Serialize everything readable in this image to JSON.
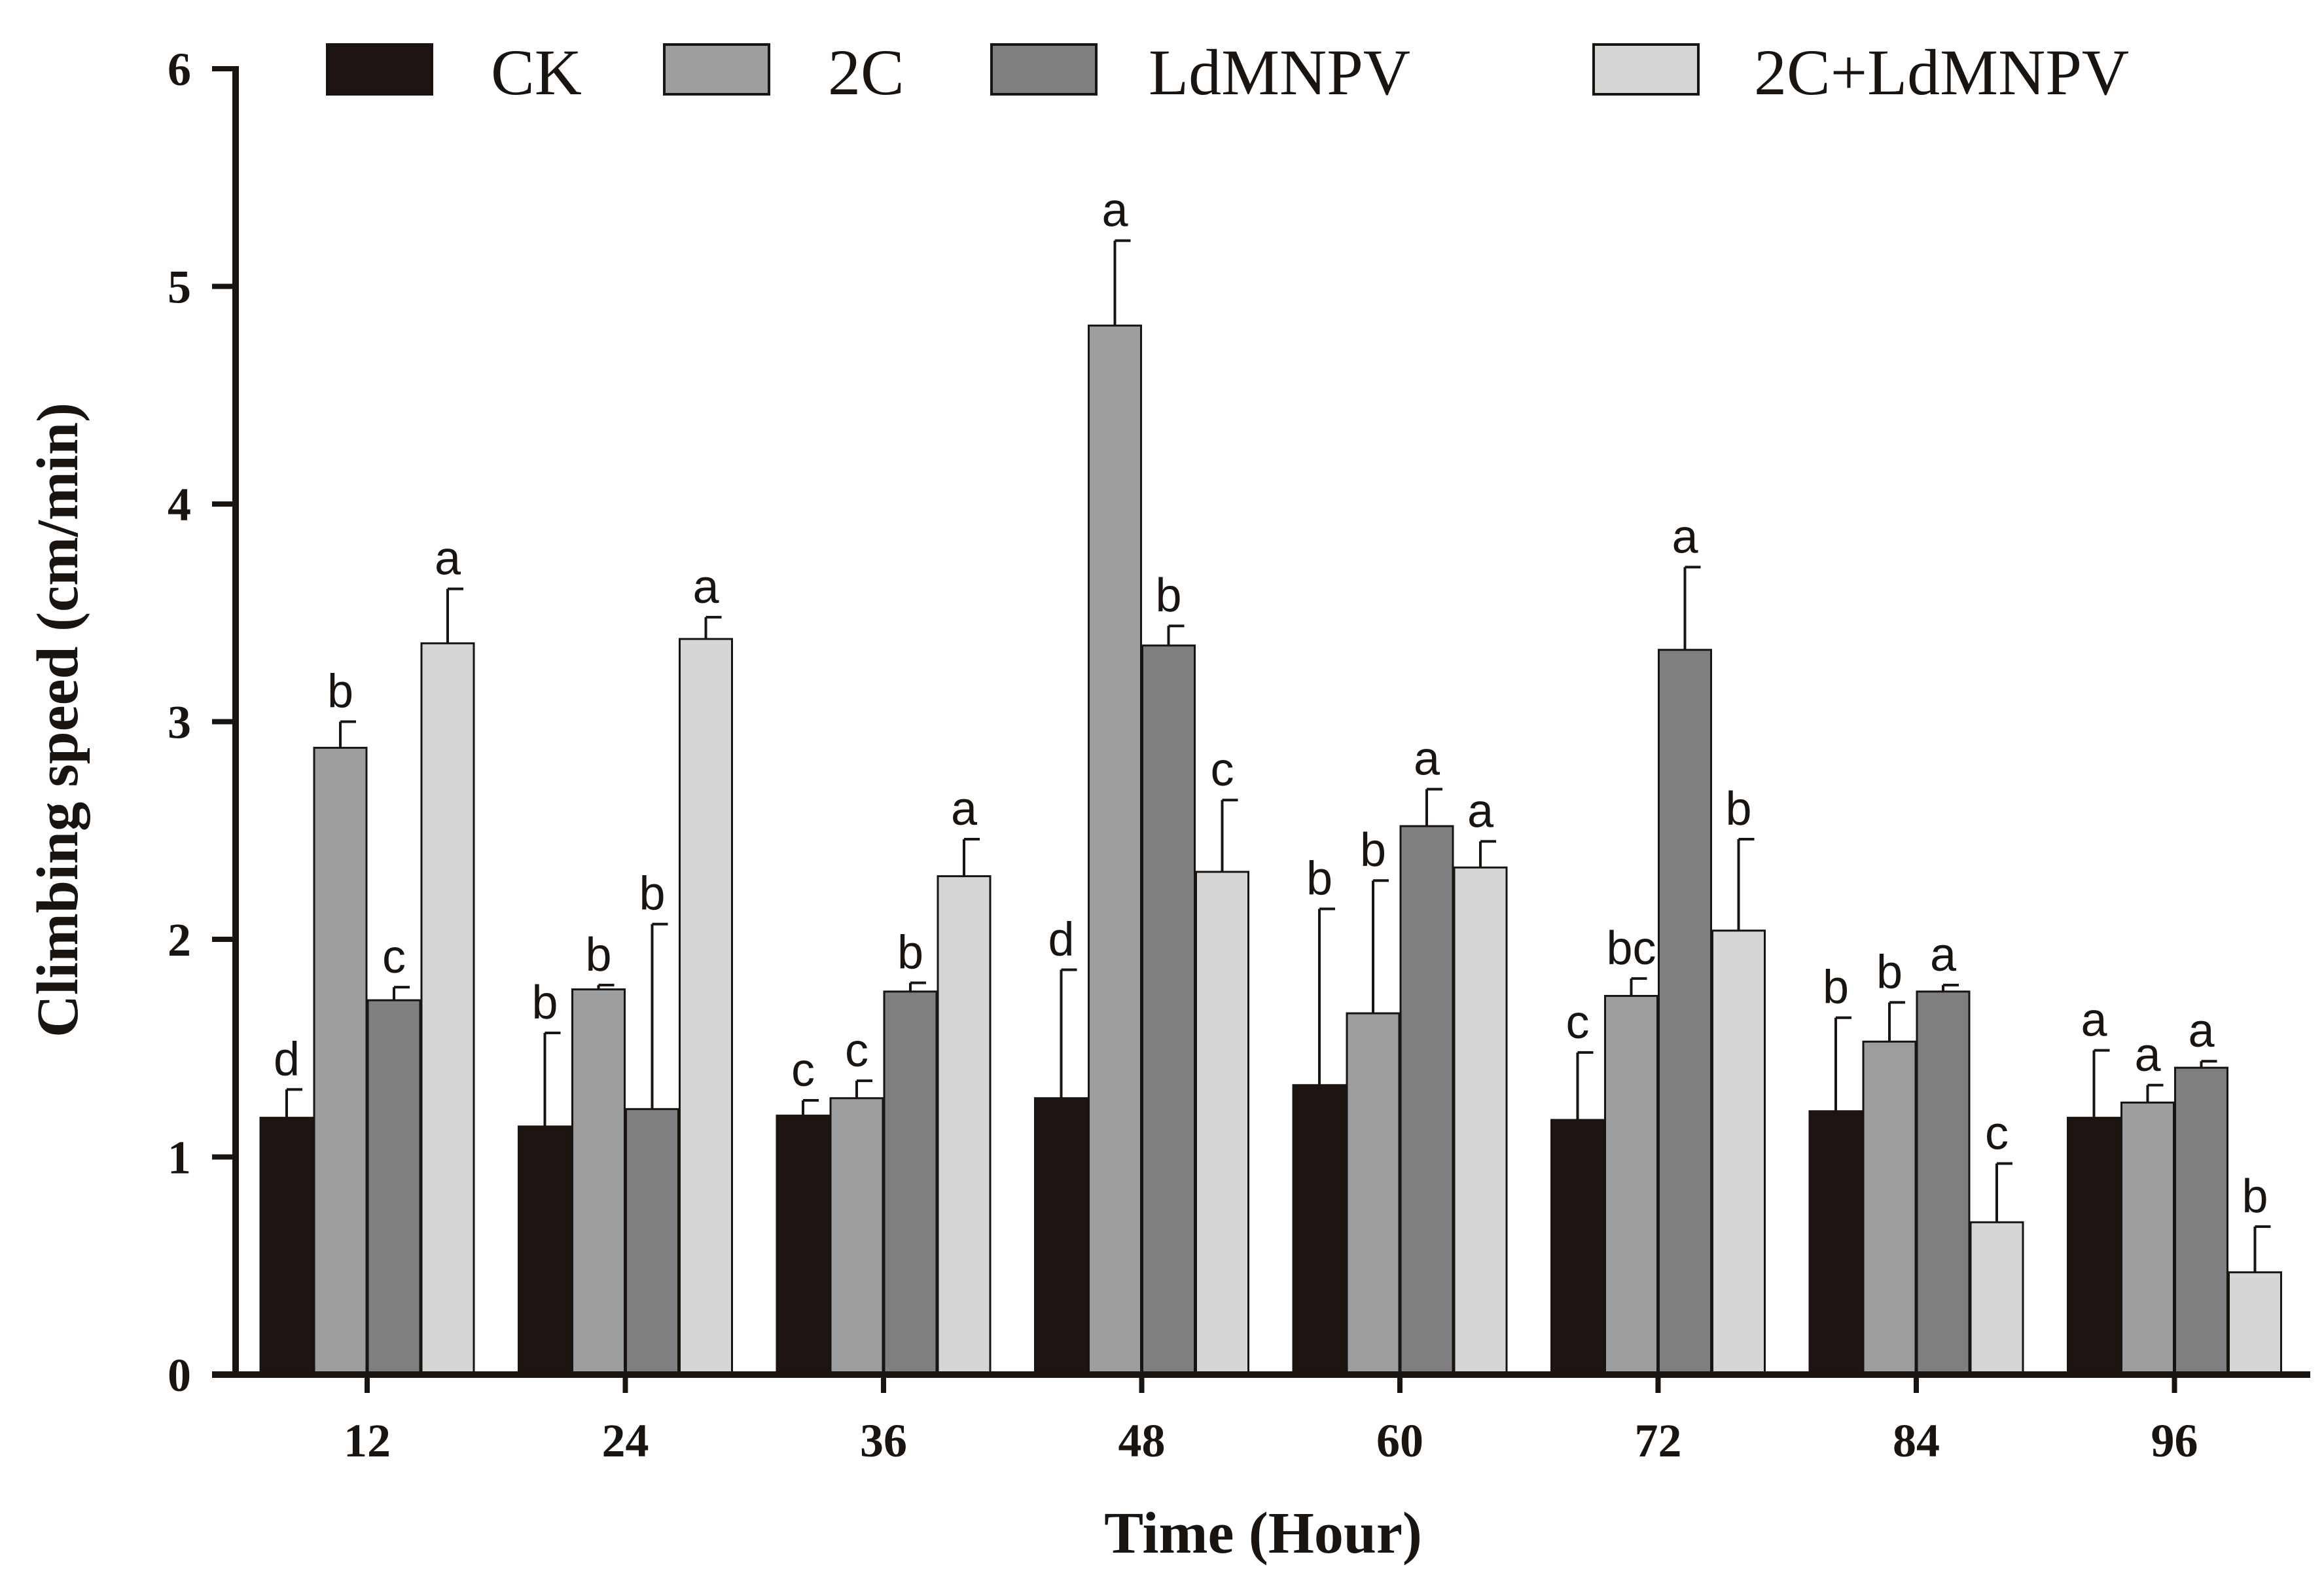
{
  "chart_data": {
    "type": "bar",
    "xlabel": "Time (Hour)",
    "ylabel": "Climbing speed (cm/min)",
    "ylim": [
      0,
      6
    ],
    "yticks": [
      "0",
      "1",
      "2",
      "3",
      "4",
      "5",
      "6"
    ],
    "categories": [
      "12",
      "24",
      "36",
      "48",
      "60",
      "72",
      "84",
      "96"
    ],
    "grid": false,
    "legend_position": "top",
    "series": [
      {
        "name": "CK",
        "color": "#1e1411",
        "values": [
          1.18,
          1.14,
          1.19,
          1.27,
          1.33,
          1.17,
          1.21,
          1.18
        ],
        "errors": [
          0.13,
          0.43,
          0.07,
          0.59,
          0.81,
          0.31,
          0.43,
          0.31
        ],
        "labels": [
          "d",
          "b",
          "c",
          "d",
          "b",
          "c",
          "b",
          "a"
        ]
      },
      {
        "name": "2C",
        "color": "#9c9d9f",
        "values": [
          2.88,
          1.77,
          1.27,
          4.82,
          1.66,
          1.74,
          1.53,
          1.25
        ],
        "errors": [
          0.12,
          0.02,
          0.08,
          0.39,
          0.61,
          0.08,
          0.18,
          0.08
        ],
        "labels": [
          "b",
          "b",
          "c",
          "a",
          "b",
          "bc",
          "b",
          "a"
        ]
      },
      {
        "name": "LdMNPV",
        "color": "#7f7f81",
        "values": [
          1.72,
          1.22,
          1.76,
          3.35,
          2.52,
          3.33,
          1.76,
          1.41
        ],
        "errors": [
          0.06,
          0.85,
          0.04,
          0.09,
          0.17,
          0.38,
          0.03,
          0.03
        ],
        "labels": [
          "c",
          "b",
          "b",
          "b",
          "a",
          "a",
          "a",
          "a"
        ]
      },
      {
        "name": "2C+LdMNPV",
        "color": "#d6d6d6",
        "values": [
          3.36,
          3.38,
          2.29,
          2.31,
          2.33,
          2.04,
          0.7,
          0.47
        ],
        "errors": [
          0.25,
          0.1,
          0.17,
          0.33,
          0.12,
          0.42,
          0.27,
          0.21
        ],
        "labels": [
          "a",
          "a",
          "a",
          "c",
          "a",
          "b",
          "c",
          "b"
        ]
      }
    ]
  }
}
